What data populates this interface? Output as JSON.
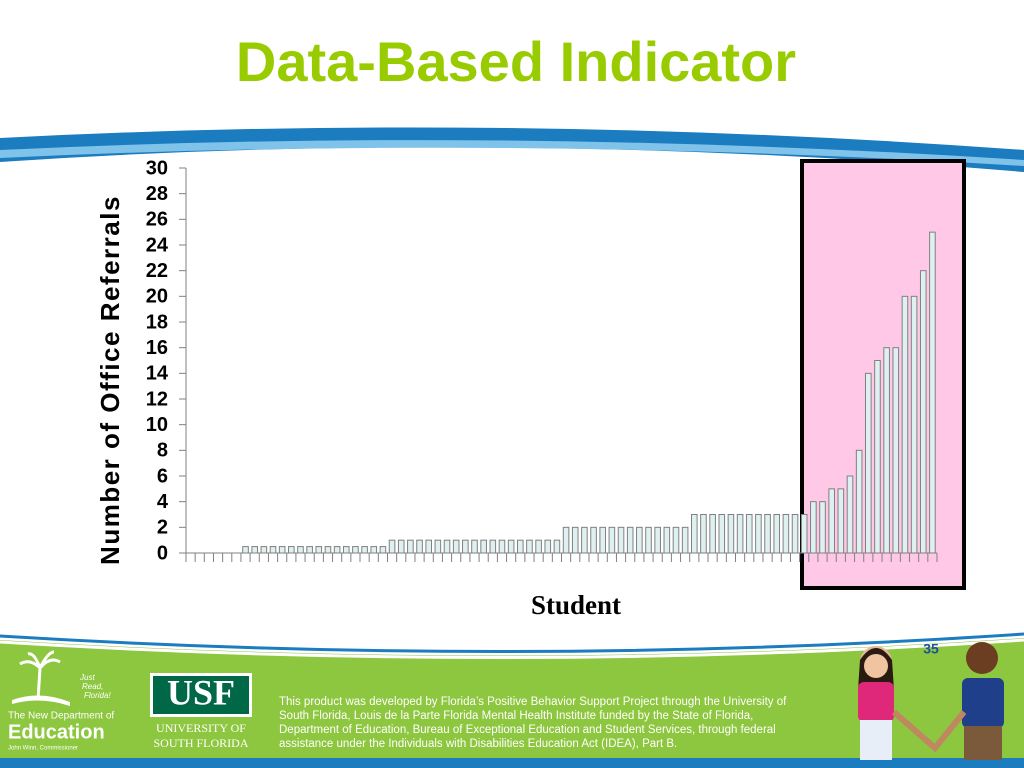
{
  "chart_data": {
    "type": "bar",
    "title": "Data-Based Indicator",
    "y_label": "Number of Office Referrals",
    "x_label": "Student",
    "categories": [
      null,
      null,
      null,
      null,
      null,
      null,
      null,
      null,
      null,
      null,
      null,
      null,
      null,
      null,
      null,
      null,
      null,
      null,
      null,
      null,
      null,
      null,
      null,
      null,
      null,
      null,
      null,
      null,
      null,
      null,
      null,
      null,
      null,
      null,
      null,
      null,
      null,
      null,
      null,
      null,
      null,
      null,
      null,
      null,
      null,
      null,
      null,
      null,
      null,
      null,
      null,
      null,
      null,
      null,
      null,
      null,
      null,
      null,
      null,
      null,
      null,
      null,
      null,
      null,
      null,
      null,
      null,
      null,
      null,
      null,
      null,
      null,
      null,
      null,
      null,
      null,
      null,
      null,
      null,
      null,
      null,
      null
    ],
    "values": [
      0,
      0,
      0,
      0,
      0,
      0,
      0.5,
      0.5,
      0.5,
      0.5,
      0.5,
      0.5,
      0.5,
      0.5,
      0.5,
      0.5,
      0.5,
      0.5,
      0.5,
      0.5,
      0.5,
      0.5,
      1,
      1,
      1,
      1,
      1,
      1,
      1,
      1,
      1,
      1,
      1,
      1,
      1,
      1,
      1,
      1,
      1,
      1,
      1,
      2,
      2,
      2,
      2,
      2,
      2,
      2,
      2,
      2,
      2,
      2,
      2,
      2,
      2,
      3,
      3,
      3,
      3,
      3,
      3,
      3,
      3,
      3,
      3,
      3,
      3,
      3,
      4,
      4,
      5,
      5,
      6,
      8,
      14,
      15,
      16,
      16,
      20,
      20,
      22,
      25
    ],
    "color": "#dff0f0",
    "edgecolor": "#808080",
    "ylim": [
      0,
      30
    ],
    "yticks": [
      0,
      2,
      4,
      6,
      8,
      10,
      12,
      14,
      16,
      18,
      20,
      22,
      24,
      26,
      28,
      30
    ],
    "grid": false
  },
  "slide_number": "35",
  "footer": {
    "lines": [
      "This product was developed by Florida’s Positive Behavior Support Project through the University of",
      "South Florida, Louis de la Parte Florida Mental Health Institute funded by the State of Florida,",
      "Department of Education, Bureau of Exceptional Education and Student Services, through federal",
      "assistance under the Individuals with Disabilities Education Act (IDEA), Part B."
    ],
    "doe_logo": {
      "tagline": [
        "Just",
        "Read,",
        "Florida!"
      ],
      "line1": "The New Department of",
      "line2": "Education",
      "line3": "John Winn, Commissioner"
    },
    "usf_logo": {
      "mark": "USF",
      "line1": "UNIVERSITY OF",
      "line2": "SOUTH FLORIDA"
    }
  }
}
